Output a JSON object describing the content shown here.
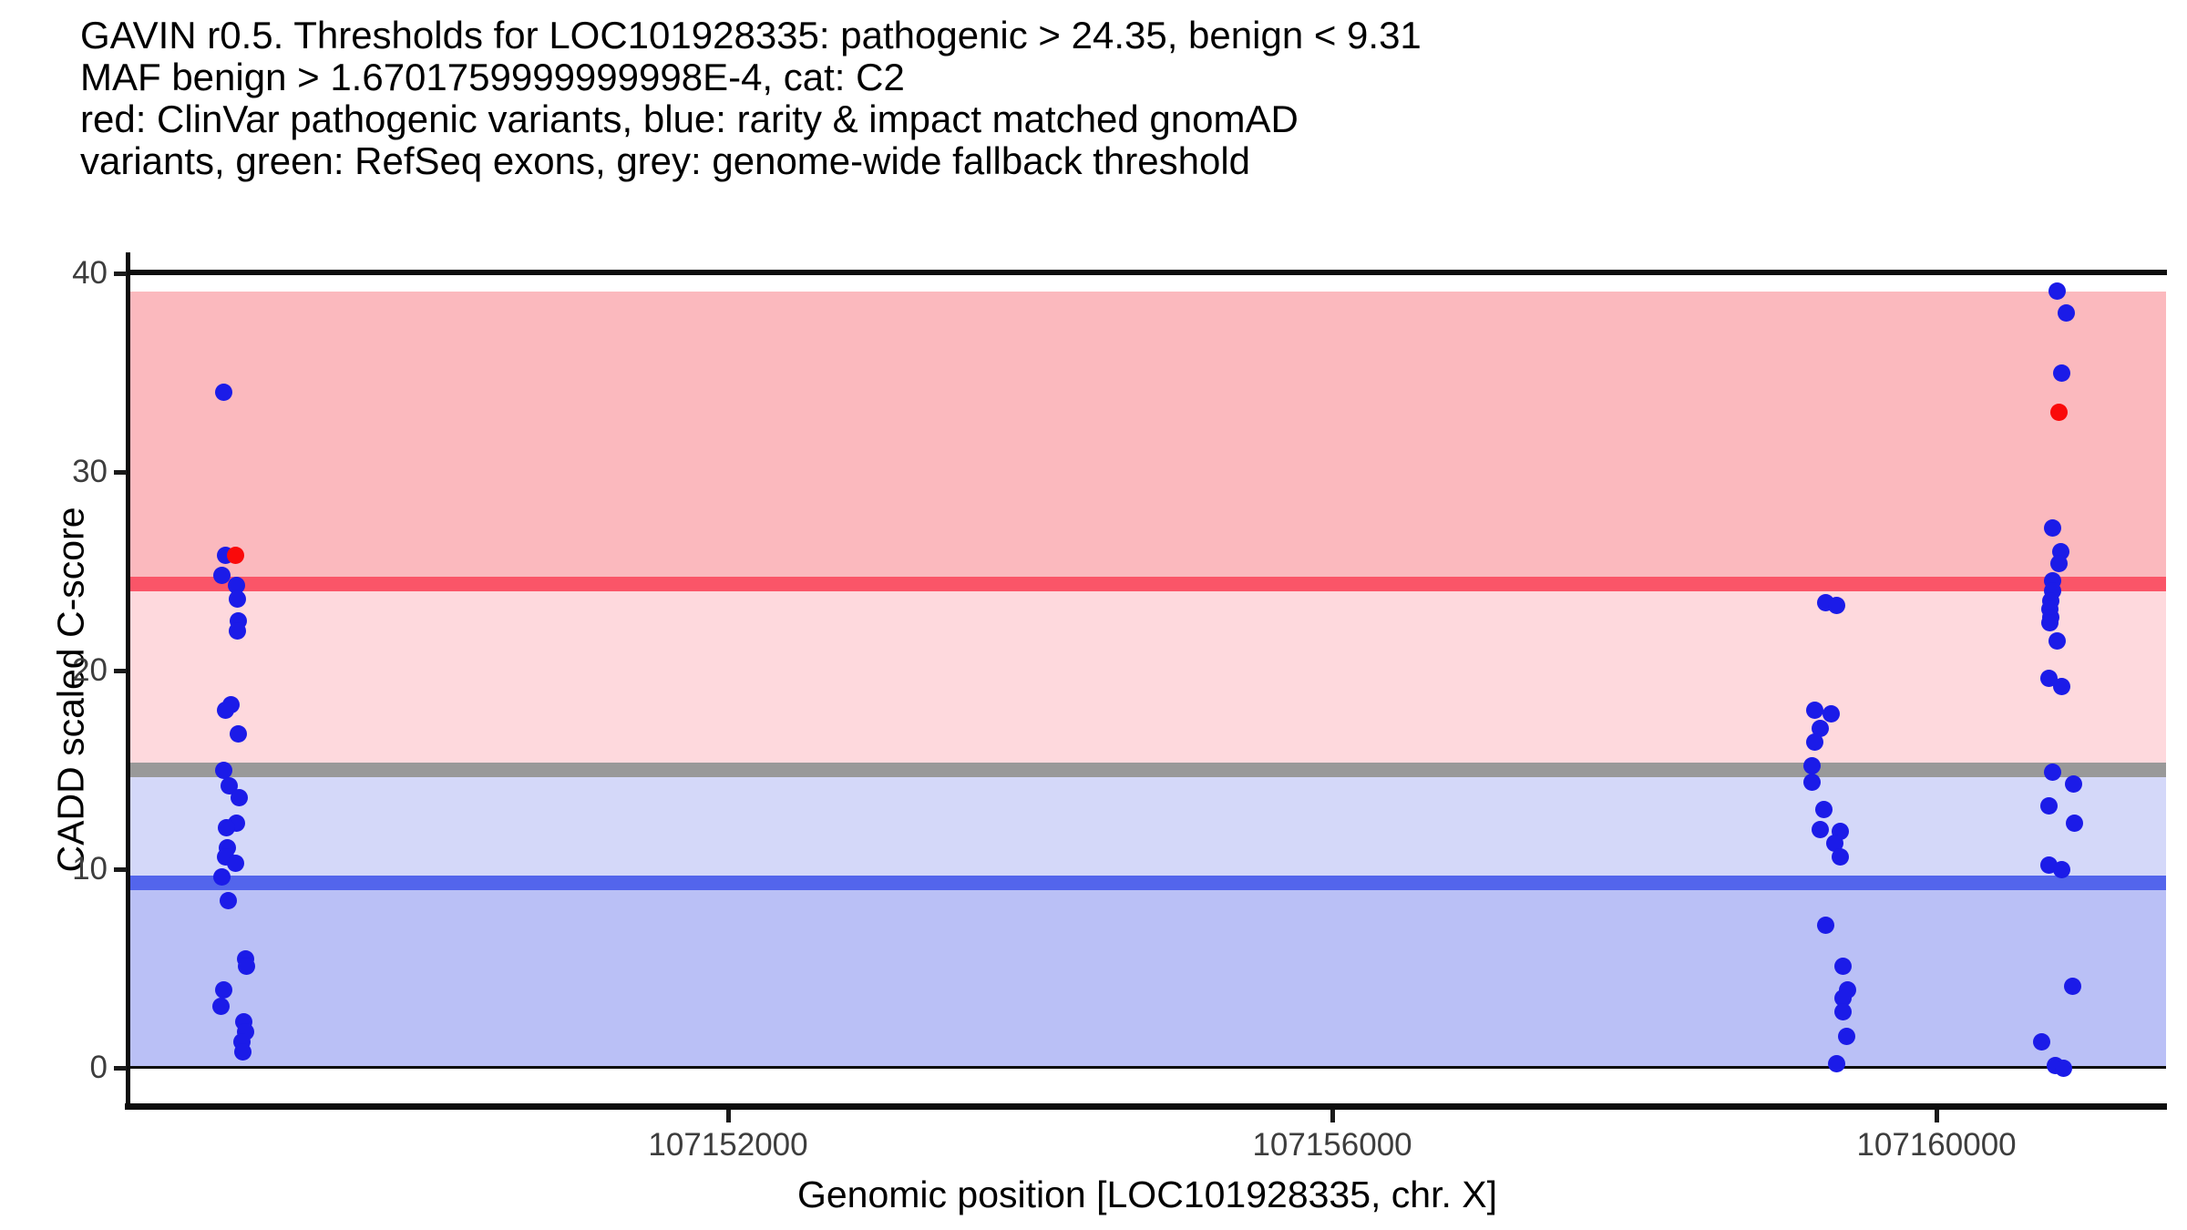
{
  "chart_data": {
    "type": "scatter",
    "title_lines": [
      "GAVIN r0.5. Thresholds for LOC101928335: pathogenic > 24.35, benign < 9.31",
      "MAF benign > 1.6701759999999998E-4, cat: C2",
      "red: ClinVar pathogenic variants, blue: rarity & impact matched gnomAD",
      "variants, green: RefSeq exons, grey: genome-wide fallback threshold"
    ],
    "xlabel": "Genomic position [LOC101928335, chr. X]",
    "ylabel": "CADD scaled C-score",
    "xlim": [
      107148024,
      107161526
    ],
    "ylim": [
      0,
      40
    ],
    "grid": false,
    "legend": "none (encoded in title text)",
    "x_ticks": [
      {
        "value": 107152000,
        "label": "107152000"
      },
      {
        "value": 107156000,
        "label": "107156000"
      },
      {
        "value": 107160000,
        "label": "107160000"
      }
    ],
    "y_ticks": [
      {
        "value": 0,
        "label": "0"
      },
      {
        "value": 10,
        "label": "10"
      },
      {
        "value": 20,
        "label": "20"
      },
      {
        "value": 30,
        "label": "30"
      },
      {
        "value": 40,
        "label": "40"
      }
    ],
    "bands": [
      {
        "from": 24.35,
        "to": 39.1,
        "color": "#FBB9BE"
      },
      {
        "from": 15.0,
        "to": 24.35,
        "color": "#FED9DD"
      },
      {
        "from": 9.31,
        "to": 15.0,
        "color": "#D4D8F9"
      },
      {
        "from": 0.0,
        "to": 9.31,
        "color": "#BAC0F6"
      }
    ],
    "thresholds": [
      {
        "value": 24.35,
        "color": "#FA5568"
      },
      {
        "value": 15.0,
        "color": "#999999"
      },
      {
        "value": 9.31,
        "color": "#5365EC"
      }
    ],
    "series": [
      {
        "name": "rarity & impact matched gnomAD variants",
        "color": "#1B1BE8",
        "points": [
          [
            107148658,
            34.0
          ],
          [
            107148670,
            25.8
          ],
          [
            107148646,
            24.8
          ],
          [
            107148742,
            24.3
          ],
          [
            107148754,
            23.6
          ],
          [
            107148760,
            22.5
          ],
          [
            107148748,
            22.0
          ],
          [
            107148706,
            18.3
          ],
          [
            107148670,
            18.0
          ],
          [
            107148760,
            16.8
          ],
          [
            107148658,
            15.0
          ],
          [
            107148694,
            14.2
          ],
          [
            107148766,
            13.6
          ],
          [
            107148742,
            12.3
          ],
          [
            107148676,
            12.1
          ],
          [
            107148682,
            11.1
          ],
          [
            107148670,
            10.6
          ],
          [
            107148736,
            10.3
          ],
          [
            107148646,
            9.6
          ],
          [
            107148688,
            8.4
          ],
          [
            107148808,
            5.5
          ],
          [
            107148814,
            5.1
          ],
          [
            107148658,
            3.9
          ],
          [
            107148640,
            3.1
          ],
          [
            107148796,
            2.3
          ],
          [
            107148808,
            1.8
          ],
          [
            107148784,
            1.3
          ],
          [
            107148790,
            0.8
          ],
          [
            107159264,
            23.4
          ],
          [
            107159336,
            23.3
          ],
          [
            107159197,
            18.0
          ],
          [
            107159300,
            17.8
          ],
          [
            107159228,
            17.1
          ],
          [
            107159197,
            16.4
          ],
          [
            107159179,
            15.2
          ],
          [
            107159179,
            14.4
          ],
          [
            107159252,
            13.0
          ],
          [
            107159228,
            12.0
          ],
          [
            107159361,
            11.9
          ],
          [
            107159324,
            11.3
          ],
          [
            107159361,
            10.6
          ],
          [
            107159264,
            7.2
          ],
          [
            107159379,
            5.1
          ],
          [
            107159409,
            3.9
          ],
          [
            107159379,
            3.5
          ],
          [
            107159379,
            2.8
          ],
          [
            107159403,
            1.6
          ],
          [
            107159336,
            0.2
          ],
          [
            107160802,
            39.1
          ],
          [
            107160862,
            38.0
          ],
          [
            107160832,
            35.0
          ],
          [
            107160766,
            27.2
          ],
          [
            107160826,
            26.0
          ],
          [
            107160814,
            25.4
          ],
          [
            107160766,
            24.5
          ],
          [
            107160766,
            24.0
          ],
          [
            107160754,
            23.5
          ],
          [
            107160748,
            23.1
          ],
          [
            107160754,
            22.7
          ],
          [
            107160748,
            22.4
          ],
          [
            107160802,
            21.5
          ],
          [
            107160742,
            19.6
          ],
          [
            107160832,
            19.2
          ],
          [
            107160766,
            14.9
          ],
          [
            107160905,
            14.3
          ],
          [
            107160742,
            13.2
          ],
          [
            107160911,
            12.3
          ],
          [
            107160742,
            10.2
          ],
          [
            107160832,
            10.0
          ],
          [
            107160899,
            4.1
          ],
          [
            107160694,
            1.3
          ],
          [
            107160784,
            0.1
          ],
          [
            107160844,
            0.0
          ]
        ]
      },
      {
        "name": "ClinVar pathogenic variants",
        "color": "#FA0A0A",
        "points": [
          [
            107148736,
            25.8
          ],
          [
            107160814,
            33.0
          ]
        ]
      }
    ]
  }
}
